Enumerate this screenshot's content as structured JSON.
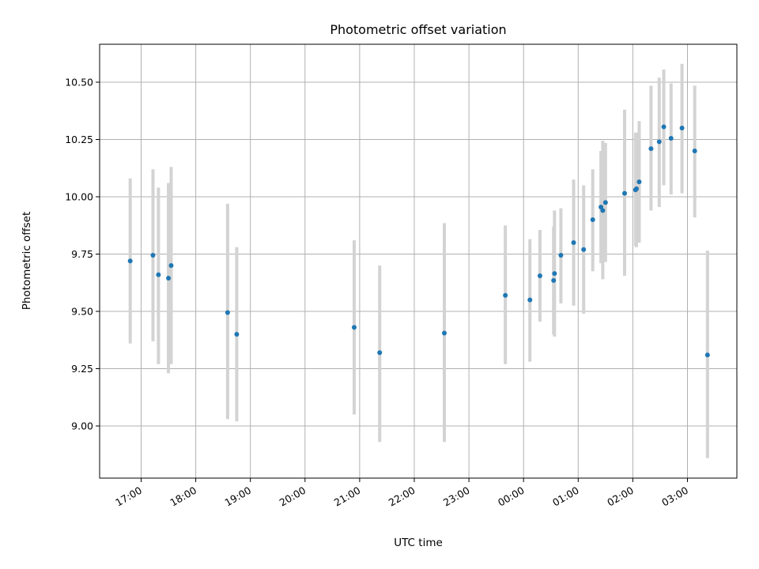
{
  "chart_data": {
    "type": "scatter",
    "title": "Photometric offset variation",
    "xlabel": "UTC time",
    "ylabel": "Photometric offset",
    "x_ticks": [
      "17:00",
      "18:00",
      "19:00",
      "20:00",
      "21:00",
      "22:00",
      "23:00",
      "00:00",
      "01:00",
      "02:00",
      "03:00"
    ],
    "y_ticks": [
      "9.00",
      "9.25",
      "9.50",
      "9.75",
      "10.00",
      "10.25",
      "10.50"
    ],
    "grid": true,
    "colors": {
      "point": "#1f77b4",
      "errorbar": "#d3d3d3",
      "grid": "#b0b0b0"
    },
    "points": [
      {
        "x": "16:48",
        "y": 9.72,
        "lo": 9.36,
        "hi": 10.08
      },
      {
        "x": "17:13",
        "y": 9.745,
        "lo": 9.37,
        "hi": 10.12
      },
      {
        "x": "17:19",
        "y": 9.66,
        "lo": 9.27,
        "hi": 10.04
      },
      {
        "x": "17:30",
        "y": 9.645,
        "lo": 9.23,
        "hi": 10.06
      },
      {
        "x": "17:33",
        "y": 9.7,
        "lo": 9.27,
        "hi": 10.13
      },
      {
        "x": "18:35",
        "y": 9.495,
        "lo": 9.03,
        "hi": 9.97
      },
      {
        "x": "18:45",
        "y": 9.4,
        "lo": 9.02,
        "hi": 9.78
      },
      {
        "x": "20:54",
        "y": 9.43,
        "lo": 9.05,
        "hi": 9.81
      },
      {
        "x": "21:22",
        "y": 9.32,
        "lo": 8.93,
        "hi": 9.7
      },
      {
        "x": "22:33",
        "y": 9.405,
        "lo": 8.93,
        "hi": 9.885
      },
      {
        "x": "23:40",
        "y": 9.57,
        "lo": 9.27,
        "hi": 9.875
      },
      {
        "x": "00:07",
        "y": 9.55,
        "lo": 9.28,
        "hi": 9.815
      },
      {
        "x": "00:18",
        "y": 9.655,
        "lo": 9.455,
        "hi": 9.855
      },
      {
        "x": "00:33",
        "y": 9.635,
        "lo": 9.4,
        "hi": 9.87
      },
      {
        "x": "00:34",
        "y": 9.665,
        "lo": 9.39,
        "hi": 9.94
      },
      {
        "x": "00:41",
        "y": 9.745,
        "lo": 9.535,
        "hi": 9.95
      },
      {
        "x": "00:55",
        "y": 9.8,
        "lo": 9.525,
        "hi": 10.075
      },
      {
        "x": "01:06",
        "y": 9.77,
        "lo": 9.49,
        "hi": 10.05
      },
      {
        "x": "01:16",
        "y": 9.9,
        "lo": 9.675,
        "hi": 10.12
      },
      {
        "x": "01:25",
        "y": 9.955,
        "lo": 9.71,
        "hi": 10.2
      },
      {
        "x": "01:27",
        "y": 9.94,
        "lo": 9.64,
        "hi": 10.245
      },
      {
        "x": "01:30",
        "y": 9.975,
        "lo": 9.715,
        "hi": 10.235
      },
      {
        "x": "01:51",
        "y": 10.015,
        "lo": 9.655,
        "hi": 10.38
      },
      {
        "x": "02:03",
        "y": 10.03,
        "lo": 9.785,
        "hi": 10.28
      },
      {
        "x": "02:04",
        "y": 10.035,
        "lo": 9.78,
        "hi": 10.28
      },
      {
        "x": "02:07",
        "y": 10.065,
        "lo": 9.8,
        "hi": 10.33
      },
      {
        "x": "02:20",
        "y": 10.21,
        "lo": 9.94,
        "hi": 10.485
      },
      {
        "x": "02:29",
        "y": 10.24,
        "lo": 9.955,
        "hi": 10.52
      },
      {
        "x": "02:34",
        "y": 10.305,
        "lo": 10.05,
        "hi": 10.555
      },
      {
        "x": "02:42",
        "y": 10.255,
        "lo": 10.01,
        "hi": 10.495
      },
      {
        "x": "02:54",
        "y": 10.3,
        "lo": 10.015,
        "hi": 10.58
      },
      {
        "x": "03:08",
        "y": 10.2,
        "lo": 9.91,
        "hi": 10.485
      },
      {
        "x": "03:22",
        "y": 9.31,
        "lo": 8.86,
        "hi": 9.765
      }
    ]
  }
}
